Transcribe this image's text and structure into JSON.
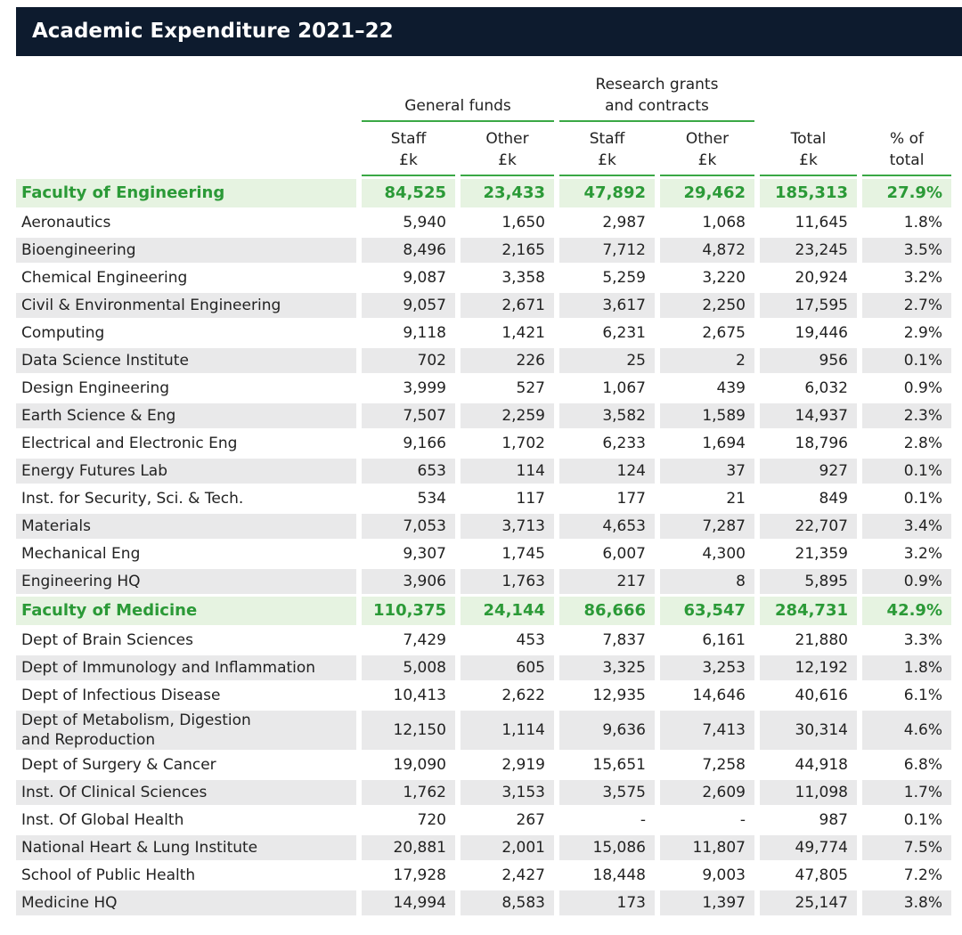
{
  "title": "Academic Expenditure 2021–22",
  "header": {
    "groups": [
      "General funds",
      "Research grants\nand contracts"
    ],
    "columns": [
      "Staff\n£k",
      "Other\n£k",
      "Staff\n£k",
      "Other\n£k",
      "Total\n£k",
      "% of\ntotal"
    ]
  },
  "sections": [
    {
      "name": "Faculty of Engineering",
      "values": [
        "84,525",
        "23,433",
        "47,892",
        "29,462",
        "185,313",
        "27.9%"
      ],
      "rows": [
        {
          "label": "Aeronautics",
          "values": [
            "5,940",
            "1,650",
            "2,987",
            "1,068",
            "11,645",
            "1.8%"
          ]
        },
        {
          "label": "Bioengineering",
          "values": [
            "8,496",
            "2,165",
            "7,712",
            "4,872",
            "23,245",
            "3.5%"
          ]
        },
        {
          "label": "Chemical Engineering",
          "values": [
            "9,087",
            "3,358",
            "5,259",
            "3,220",
            "20,924",
            "3.2%"
          ]
        },
        {
          "label": "Civil & Environmental Engineering",
          "values": [
            "9,057",
            "2,671",
            "3,617",
            "2,250",
            "17,595",
            "2.7%"
          ]
        },
        {
          "label": "Computing",
          "values": [
            "9,118",
            "1,421",
            "6,231",
            "2,675",
            "19,446",
            "2.9%"
          ]
        },
        {
          "label": "Data Science Institute",
          "values": [
            "702",
            "226",
            "25",
            "2",
            "956",
            "0.1%"
          ]
        },
        {
          "label": "Design Engineering",
          "values": [
            "3,999",
            "527",
            "1,067",
            "439",
            "6,032",
            "0.9%"
          ]
        },
        {
          "label": "Earth Science & Eng",
          "values": [
            "7,507",
            "2,259",
            "3,582",
            "1,589",
            "14,937",
            "2.3%"
          ]
        },
        {
          "label": "Electrical and Electronic Eng",
          "values": [
            "9,166",
            "1,702",
            "6,233",
            "1,694",
            "18,796",
            "2.8%"
          ]
        },
        {
          "label": "Energy Futures Lab",
          "values": [
            "653",
            "114",
            "124",
            "37",
            "927",
            "0.1%"
          ]
        },
        {
          "label": "Inst. for Security, Sci. & Tech.",
          "values": [
            "534",
            "117",
            "177",
            "21",
            "849",
            "0.1%"
          ]
        },
        {
          "label": "Materials",
          "values": [
            "7,053",
            "3,713",
            "4,653",
            "7,287",
            "22,707",
            "3.4%"
          ]
        },
        {
          "label": "Mechanical Eng",
          "values": [
            "9,307",
            "1,745",
            "6,007",
            "4,300",
            "21,359",
            "3.2%"
          ]
        },
        {
          "label": "Engineering HQ",
          "values": [
            "3,906",
            "1,763",
            "217",
            "8",
            "5,895",
            "0.9%"
          ]
        }
      ]
    },
    {
      "name": "Faculty of Medicine",
      "values": [
        "110,375",
        "24,144",
        "86,666",
        "63,547",
        "284,731",
        "42.9%"
      ],
      "rows": [
        {
          "label": "Dept of Brain Sciences",
          "values": [
            "7,429",
            "453",
            "7,837",
            "6,161",
            "21,880",
            "3.3%"
          ]
        },
        {
          "label": "Dept of Immunology and Inflammation",
          "values": [
            "5,008",
            "605",
            "3,325",
            "3,253",
            "12,192",
            "1.8%"
          ]
        },
        {
          "label": "Dept of Infectious Disease",
          "values": [
            "10,413",
            "2,622",
            "12,935",
            "14,646",
            "40,616",
            "6.1%"
          ]
        },
        {
          "label": "Dept of Metabolism, Digestion\nand Reproduction",
          "values": [
            "12,150",
            "1,114",
            "9,636",
            "7,413",
            "30,314",
            "4.6%"
          ]
        },
        {
          "label": "Dept of Surgery & Cancer",
          "values": [
            "19,090",
            "2,919",
            "15,651",
            "7,258",
            "44,918",
            "6.8%"
          ]
        },
        {
          "label": "Inst. Of Clinical Sciences",
          "values": [
            "1,762",
            "3,153",
            "3,575",
            "2,609",
            "11,098",
            "1.7%"
          ]
        },
        {
          "label": "Inst. Of Global Health",
          "values": [
            "720",
            "267",
            "-",
            "-",
            "987",
            "0.1%"
          ]
        },
        {
          "label": "National Heart & Lung Institute",
          "values": [
            "20,881",
            "2,001",
            "15,086",
            "11,807",
            "49,774",
            "7.5%"
          ]
        },
        {
          "label": "School of Public Health",
          "values": [
            "17,928",
            "2,427",
            "18,448",
            "9,003",
            "47,805",
            "7.2%"
          ]
        },
        {
          "label": "Medicine HQ",
          "values": [
            "14,994",
            "8,583",
            "173",
            "1,397",
            "25,147",
            "3.8%"
          ]
        }
      ]
    }
  ]
}
